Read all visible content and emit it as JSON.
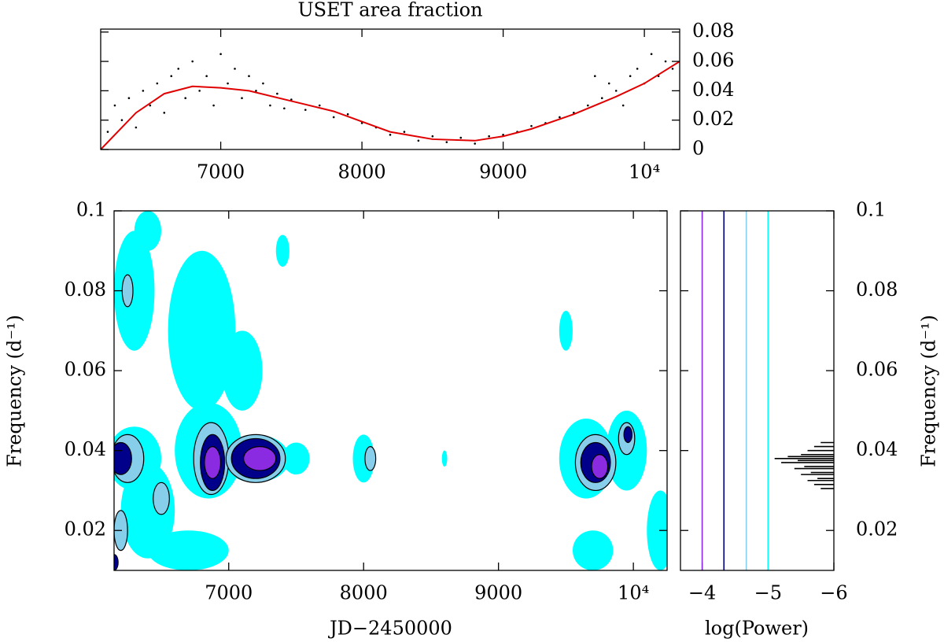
{
  "chart_data": [
    {
      "type": "scatter",
      "title": "USET area fraction",
      "x": [
        6200,
        6250,
        6300,
        6350,
        6400,
        6450,
        6500,
        6550,
        6600,
        6650,
        6700,
        6750,
        6800,
        6850,
        6900,
        6950,
        7000,
        7050,
        7100,
        7150,
        7200,
        7250,
        7300,
        7350,
        7400,
        7450,
        7500,
        7600,
        7700,
        7800,
        7900,
        8000,
        8100,
        8200,
        8300,
        8400,
        8500,
        8600,
        8700,
        8800,
        8900,
        9000,
        9100,
        9200,
        9300,
        9400,
        9500,
        9600,
        9650,
        9700,
        9750,
        9800,
        9850,
        9900,
        9950,
        10000,
        10050,
        10100,
        10150,
        10200
      ],
      "y": [
        0.012,
        0.03,
        0.02,
        0.035,
        0.015,
        0.04,
        0.03,
        0.045,
        0.025,
        0.05,
        0.055,
        0.035,
        0.06,
        0.04,
        0.05,
        0.03,
        0.065,
        0.045,
        0.055,
        0.035,
        0.05,
        0.04,
        0.045,
        0.03,
        0.038,
        0.028,
        0.034,
        0.027,
        0.03,
        0.022,
        0.024,
        0.018,
        0.015,
        0.01,
        0.012,
        0.006,
        0.009,
        0.005,
        0.008,
        0.004,
        0.009,
        0.01,
        0.012,
        0.016,
        0.018,
        0.022,
        0.025,
        0.03,
        0.05,
        0.035,
        0.045,
        0.04,
        0.03,
        0.05,
        0.055,
        0.045,
        0.065,
        0.05,
        0.06,
        0.055
      ],
      "color": "#000000",
      "fit": {
        "x": [
          6150,
          6400,
          6600,
          6800,
          7000,
          7200,
          7500,
          7800,
          8000,
          8200,
          8500,
          8800,
          9000,
          9200,
          9500,
          9800,
          10000,
          10250
        ],
        "y": [
          0.0,
          0.025,
          0.038,
          0.043,
          0.042,
          0.04,
          0.033,
          0.026,
          0.019,
          0.012,
          0.007,
          0.006,
          0.009,
          0.014,
          0.024,
          0.036,
          0.045,
          0.06
        ],
        "color": "#e00000"
      },
      "xlim": [
        6150,
        10250
      ],
      "xticks": [
        7000,
        8000,
        9000,
        {
          "value": 10000,
          "label": "10⁴"
        }
      ],
      "ylim": [
        0,
        0.082
      ],
      "yticks": [
        0,
        0.02,
        0.04,
        0.06,
        0.08
      ]
    },
    {
      "type": "contour",
      "xlabel": "JD−2450000",
      "ylabel": "Frequency (d⁻¹)",
      "xlim": [
        6150,
        10250
      ],
      "xticks": [
        7000,
        8000,
        9000,
        {
          "value": 10000,
          "label": "10⁴"
        }
      ],
      "ylim": [
        0.01,
        0.1
      ],
      "yticks": [
        0.02,
        0.04,
        0.06,
        0.08,
        0.1
      ],
      "levels": [
        {
          "power": -5.0,
          "color": "#00ffff"
        },
        {
          "power": -4.67,
          "color": "#87ceeb"
        },
        {
          "power": -4.33,
          "color": "#00008b"
        },
        {
          "power": -4.0,
          "color": "#8a2be2"
        }
      ],
      "blobs": [
        {
          "x": 6300,
          "y": 0.038,
          "rx": 200,
          "ry": 0.008,
          "power": -5.0
        },
        {
          "x": 6850,
          "y": 0.04,
          "rx": 250,
          "ry": 0.012,
          "power": -5.0
        },
        {
          "x": 7200,
          "y": 0.038,
          "rx": 250,
          "ry": 0.006,
          "power": -5.0
        },
        {
          "x": 6400,
          "y": 0.025,
          "rx": 200,
          "ry": 0.012,
          "power": -5.0
        },
        {
          "x": 6800,
          "y": 0.07,
          "rx": 250,
          "ry": 0.02,
          "power": -5.0
        },
        {
          "x": 6300,
          "y": 0.08,
          "rx": 150,
          "ry": 0.015,
          "power": -5.0
        },
        {
          "x": 6400,
          "y": 0.095,
          "rx": 100,
          "ry": 0.005,
          "power": -5.0
        },
        {
          "x": 7500,
          "y": 0.038,
          "rx": 100,
          "ry": 0.004,
          "power": -5.0
        },
        {
          "x": 8000,
          "y": 0.038,
          "rx": 80,
          "ry": 0.006,
          "power": -5.0
        },
        {
          "x": 9650,
          "y": 0.038,
          "rx": 200,
          "ry": 0.01,
          "power": -5.0
        },
        {
          "x": 9950,
          "y": 0.04,
          "rx": 150,
          "ry": 0.01,
          "power": -5.0
        },
        {
          "x": 10200,
          "y": 0.02,
          "rx": 100,
          "ry": 0.01,
          "power": -5.0
        },
        {
          "x": 6700,
          "y": 0.015,
          "rx": 300,
          "ry": 0.005,
          "power": -5.0
        },
        {
          "x": 9700,
          "y": 0.015,
          "rx": 150,
          "ry": 0.005,
          "power": -5.0
        },
        {
          "x": 7100,
          "y": 0.06,
          "rx": 150,
          "ry": 0.01,
          "power": -5.0
        },
        {
          "x": 8600,
          "y": 0.038,
          "rx": 20,
          "ry": 0.002,
          "power": -5.0
        },
        {
          "x": 9500,
          "y": 0.07,
          "rx": 50,
          "ry": 0.005,
          "power": -5.0
        },
        {
          "x": 7400,
          "y": 0.09,
          "rx": 50,
          "ry": 0.004,
          "power": -5.0
        },
        {
          "x": 6250,
          "y": 0.038,
          "rx": 120,
          "ry": 0.006,
          "power": -4.67
        },
        {
          "x": 6870,
          "y": 0.038,
          "rx": 130,
          "ry": 0.009,
          "power": -4.67
        },
        {
          "x": 7200,
          "y": 0.038,
          "rx": 220,
          "ry": 0.006,
          "power": -4.67
        },
        {
          "x": 9720,
          "y": 0.037,
          "rx": 150,
          "ry": 0.007,
          "power": -4.67
        },
        {
          "x": 6250,
          "y": 0.08,
          "rx": 40,
          "ry": 0.004,
          "power": -4.67
        },
        {
          "x": 8050,
          "y": 0.038,
          "rx": 40,
          "ry": 0.003,
          "power": -4.67
        },
        {
          "x": 9950,
          "y": 0.043,
          "rx": 60,
          "ry": 0.004,
          "power": -4.67
        },
        {
          "x": 6200,
          "y": 0.02,
          "rx": 50,
          "ry": 0.005,
          "power": -4.67
        },
        {
          "x": 6500,
          "y": 0.028,
          "rx": 60,
          "ry": 0.004,
          "power": -4.67
        },
        {
          "x": 6200,
          "y": 0.038,
          "rx": 80,
          "ry": 0.004,
          "power": -4.33
        },
        {
          "x": 6880,
          "y": 0.037,
          "rx": 90,
          "ry": 0.007,
          "power": -4.33
        },
        {
          "x": 7200,
          "y": 0.038,
          "rx": 180,
          "ry": 0.005,
          "power": -4.33
        },
        {
          "x": 9720,
          "y": 0.037,
          "rx": 110,
          "ry": 0.005,
          "power": -4.33
        },
        {
          "x": 6150,
          "y": 0.012,
          "rx": 30,
          "ry": 0.002,
          "power": -4.33
        },
        {
          "x": 9960,
          "y": 0.044,
          "rx": 30,
          "ry": 0.002,
          "power": -4.33
        },
        {
          "x": 6880,
          "y": 0.037,
          "rx": 60,
          "ry": 0.004,
          "power": -4.0
        },
        {
          "x": 7230,
          "y": 0.038,
          "rx": 120,
          "ry": 0.003,
          "power": -4.0
        },
        {
          "x": 9750,
          "y": 0.036,
          "rx": 60,
          "ry": 0.003,
          "power": -4.0
        }
      ]
    },
    {
      "type": "spectrum",
      "xlabel": "log(Power)",
      "ylabel": "Frequency (d⁻¹)",
      "xlim": [
        -3.67,
        -6
      ],
      "xticks": [
        {
          "value": -4,
          "label": "−4"
        },
        {
          "value": -5,
          "label": "−5"
        },
        {
          "value": -6,
          "label": "−6"
        }
      ],
      "ylim": [
        0.01,
        0.1
      ],
      "yticks": [
        0.02,
        0.04,
        0.06,
        0.08,
        0.1
      ],
      "frequency": [
        0.0305,
        0.0315,
        0.0325,
        0.033,
        0.034,
        0.0345,
        0.0355,
        0.036,
        0.037,
        0.0375,
        0.038,
        0.0385,
        0.039,
        0.04,
        0.041,
        0.042
      ],
      "power": [
        -5.8,
        -5.7,
        -5.6,
        -5.75,
        -5.5,
        -5.65,
        -5.4,
        -5.55,
        -5.2,
        -5.45,
        -5.1,
        -5.3,
        -5.5,
        -5.6,
        -5.7,
        -5.8
      ],
      "color": "#000000"
    }
  ]
}
